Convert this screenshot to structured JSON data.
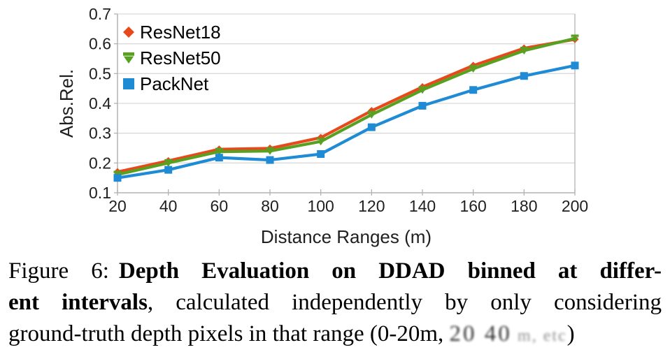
{
  "chart_data": {
    "type": "line",
    "title": "",
    "xlabel": "Distance Ranges (m)",
    "ylabel": "Abs.Rel.",
    "x": [
      20,
      40,
      60,
      80,
      100,
      120,
      140,
      160,
      180,
      200
    ],
    "xlim": [
      20,
      200
    ],
    "ylim": [
      0.1,
      0.7
    ],
    "yticks": [
      0.1,
      0.2,
      0.3,
      0.4,
      0.5,
      0.6,
      0.7
    ],
    "grid": "horizontal",
    "legend_position": "top-left-inside",
    "series": [
      {
        "name": "ResNet18",
        "color": "#e8491c",
        "marker": "diamond",
        "values": [
          0.17,
          0.207,
          0.246,
          0.249,
          0.285,
          0.375,
          0.455,
          0.527,
          0.585,
          0.615
        ]
      },
      {
        "name": "ResNet50",
        "color": "#58a120",
        "marker": "arrow-down",
        "values": [
          0.161,
          0.2,
          0.238,
          0.24,
          0.272,
          0.362,
          0.445,
          0.516,
          0.577,
          0.618
        ]
      },
      {
        "name": "PackNet",
        "color": "#1e8bd4",
        "marker": "square",
        "values": [
          0.15,
          0.177,
          0.218,
          0.21,
          0.23,
          0.32,
          0.392,
          0.445,
          0.492,
          0.527
        ]
      }
    ]
  },
  "colors": {
    "grid": "#d9d9d9",
    "axis": "#b3b3b3",
    "tick_text": "#1f1f1f",
    "label_text": "#1f1f1f"
  },
  "caption": {
    "prefix": "Figure 6:",
    "bold_part1": "Depth Evaluation on DDAD binned at differ-",
    "bold_part2": "ent intervals",
    "normal_part2": ", calculated independently by only considering",
    "normal_part3": "ground-truth depth pixels in that range (0-20m,",
    "degraded_text": "20 40",
    "degraded_text2": "m, etc",
    "closing_paren": ")"
  }
}
